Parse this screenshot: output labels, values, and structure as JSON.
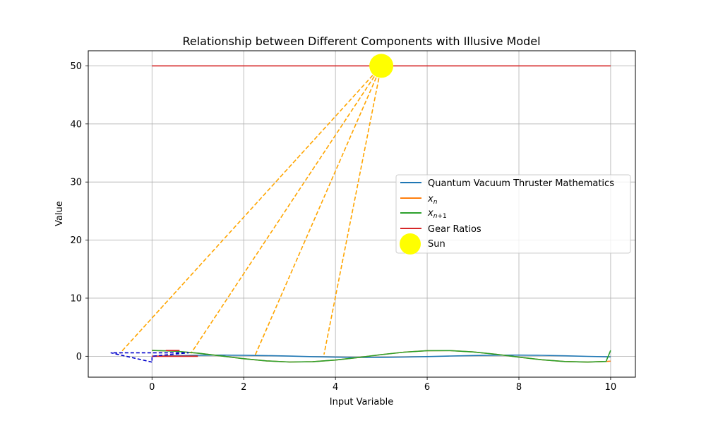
{
  "chart_data": {
    "type": "line",
    "title": "Relationship between Different Components with Illusive Model",
    "xlabel": "Input Variable",
    "ylabel": "Value",
    "xlim": [
      -1.39,
      10.54
    ],
    "ylim": [
      -3.6,
      52.6
    ],
    "xticks": [
      0,
      2,
      4,
      6,
      8,
      10
    ],
    "yticks": [
      0,
      10,
      20,
      30,
      40,
      50
    ],
    "grid": true,
    "legend_position": "center-right",
    "series": [
      {
        "name": "Quantum Vacuum Thruster Mathematics",
        "color": "#1f77b4",
        "x": [
          0,
          0.5,
          1,
          1.5,
          2,
          2.5,
          3,
          3.5,
          4,
          4.5,
          5,
          5.5,
          6,
          6.5,
          7,
          7.5,
          8,
          8.5,
          9,
          9.5,
          10
        ],
        "values": [
          0,
          0.1,
          0.17,
          0.2,
          0.18,
          0.12,
          0.03,
          -0.07,
          -0.15,
          -0.2,
          -0.19,
          -0.14,
          -0.06,
          0.04,
          0.13,
          0.19,
          0.2,
          0.16,
          0.08,
          -0.02,
          -0.11
        ]
      },
      {
        "name": "x_n",
        "color": "#ff7f0e",
        "x": [
          0,
          0.5,
          1,
          1.5,
          2,
          2.5,
          3,
          3.5,
          4,
          4.5,
          5,
          5.5,
          6,
          6.5,
          7,
          7.5,
          8,
          8.5,
          9,
          9.5,
          9.9,
          10
        ],
        "values": [
          1.0,
          0.88,
          0.54,
          0.07,
          -0.42,
          -0.8,
          -0.99,
          -0.94,
          -0.65,
          -0.21,
          0.28,
          0.71,
          0.96,
          0.98,
          0.75,
          0.35,
          -0.15,
          -0.6,
          -0.91,
          -1.0,
          -0.89,
          -0.84
        ]
      },
      {
        "name": "x_{n+1}",
        "color": "#2ca02c",
        "x": [
          0,
          0.5,
          1,
          1.5,
          2,
          2.5,
          3,
          3.5,
          4,
          4.5,
          5,
          5.5,
          6,
          6.5,
          7,
          7.5,
          8,
          8.5,
          9,
          9.5,
          9.9,
          10
        ],
        "values": [
          1.0,
          0.88,
          0.54,
          0.07,
          -0.42,
          -0.8,
          -0.99,
          -0.94,
          -0.65,
          -0.21,
          0.28,
          0.71,
          0.96,
          0.98,
          0.75,
          0.35,
          -0.15,
          -0.6,
          -0.91,
          -1.0,
          -0.89,
          1.0
        ]
      },
      {
        "name": "Gear Ratios",
        "color": "#d62728",
        "x": [
          0,
          10
        ],
        "values": [
          50,
          50
        ]
      }
    ],
    "sun": {
      "name": "Sun",
      "x": 5,
      "y": 50,
      "color": "#ffff00"
    },
    "rays": {
      "color": "#ffa500",
      "from": [
        5,
        50
      ],
      "ends": [
        [
          -0.7,
          0.5
        ],
        [
          0.85,
          0.5
        ],
        [
          2.25,
          0.2
        ],
        [
          3.75,
          0.3
        ]
      ]
    },
    "red_segments": [
      {
        "color": "#d62728",
        "x": [
          0,
          1
        ],
        "values": [
          0,
          0
        ]
      },
      {
        "color": "#d62728",
        "x": [
          0.3,
          0.6
        ],
        "values": [
          1.0,
          1.0
        ]
      }
    ],
    "blue_dashed": {
      "color": "#0000cc",
      "x": [
        0,
        -0.9,
        0.8,
        0,
        0
      ],
      "values": [
        -1.0,
        0.6,
        0.6,
        0,
        -1.0
      ]
    }
  }
}
